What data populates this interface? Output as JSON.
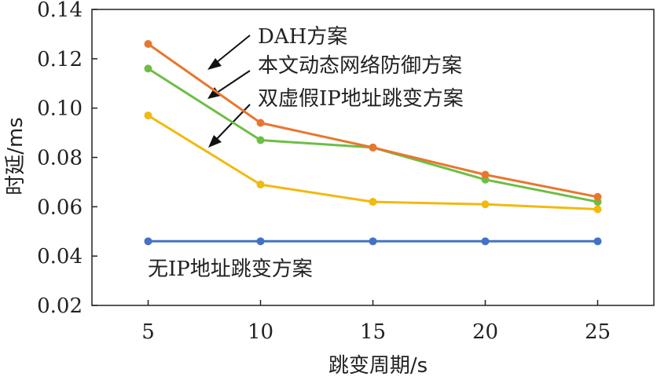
{
  "chart_data": {
    "type": "line",
    "xlabel": "跳变周期/s",
    "ylabel": "时延/ms",
    "x": [
      5,
      10,
      15,
      20,
      25
    ],
    "xticks": [
      "5",
      "10",
      "15",
      "20",
      "25"
    ],
    "xlim": [
      2.5,
      27.5
    ],
    "ylim": [
      0.02,
      0.14
    ],
    "yticks": [
      "0.02",
      "0.04",
      "0.06",
      "0.08",
      "0.10",
      "0.12",
      "0.14"
    ],
    "grid": false,
    "series": [
      {
        "name": "DAH方案",
        "color": "#E8772E",
        "values": [
          0.126,
          0.094,
          0.084,
          0.073,
          0.064
        ]
      },
      {
        "name": "本文动态网络防御方案",
        "color": "#6DBE45",
        "values": [
          0.116,
          0.087,
          0.084,
          0.071,
          0.062
        ]
      },
      {
        "name": "双虚假IP地址跳变方案",
        "color": "#F2B90F",
        "values": [
          0.097,
          0.069,
          0.062,
          0.061,
          0.059
        ]
      },
      {
        "name": "无IP地址跳变方案",
        "color": "#4472C4",
        "values": [
          0.046,
          0.046,
          0.046,
          0.046,
          0.046
        ]
      }
    ]
  }
}
